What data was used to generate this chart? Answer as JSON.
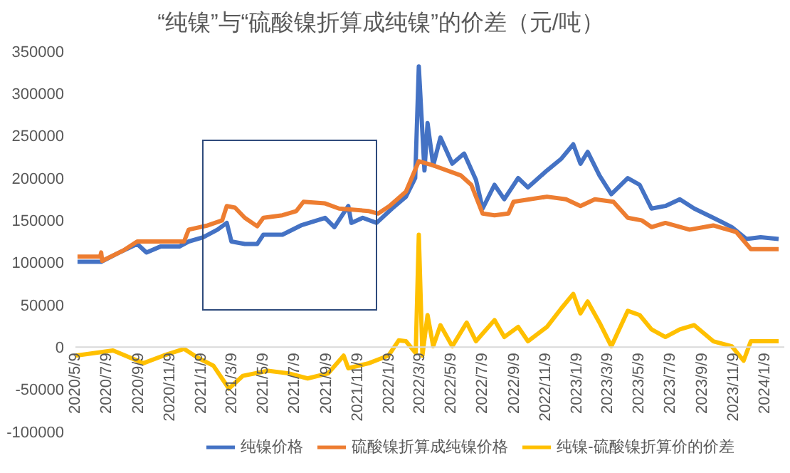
{
  "chart_data": {
    "type": "line",
    "title": "“纯镍”与“硫酸镍折算成纯镍”的价差（元/吨）",
    "legend": "bottom",
    "grid": false,
    "marker": "none",
    "line_style": "solid",
    "xlim": [
      "2020-05-09",
      "2024-02-15"
    ],
    "xticks": [
      {
        "value": "2020-05-09",
        "label": "2020/5/9"
      },
      {
        "value": "2020-07-09",
        "label": "2020/7/9"
      },
      {
        "value": "2020-09-09",
        "label": "2020/9/9"
      },
      {
        "value": "2020-11-09",
        "label": "2020/11/9"
      },
      {
        "value": "2021-01-09",
        "label": "2021/1/9"
      },
      {
        "value": "2021-03-09",
        "label": "2021/3/9"
      },
      {
        "value": "2021-05-09",
        "label": "2021/5/9"
      },
      {
        "value": "2021-07-09",
        "label": "2021/7/9"
      },
      {
        "value": "2021-09-09",
        "label": "2021/9/9"
      },
      {
        "value": "2021-11-09",
        "label": "2021/11/9"
      },
      {
        "value": "2022-01-09",
        "label": "2022/1/9"
      },
      {
        "value": "2022-03-09",
        "label": "2022/3/9"
      },
      {
        "value": "2022-05-09",
        "label": "2022/5/9"
      },
      {
        "value": "2022-07-09",
        "label": "2022/7/9"
      },
      {
        "value": "2022-09-09",
        "label": "2022/9/9"
      },
      {
        "value": "2022-11-09",
        "label": "2022/11/9"
      },
      {
        "value": "2023-01-09",
        "label": "2023/1/9"
      },
      {
        "value": "2023-03-09",
        "label": "2023/3/9"
      },
      {
        "value": "2023-05-09",
        "label": "2023/5/9"
      },
      {
        "value": "2023-07-09",
        "label": "2023/7/9"
      },
      {
        "value": "2023-09-09",
        "label": "2023/9/9"
      },
      {
        "value": "2023-11-09",
        "label": "2023/11/9"
      },
      {
        "value": "2024-01-09",
        "label": "2024/1/9"
      }
    ],
    "ylim": [
      -100000,
      350000
    ],
    "yticks": [
      -100000,
      -50000,
      0,
      50000,
      100000,
      150000,
      200000,
      250000,
      300000,
      350000
    ],
    "series": [
      {
        "name": "纯镍价格",
        "color": "#4472c4",
        "x": [
          "2020-05-13",
          "2020-06-28",
          "2020-07-30",
          "2020-09-06",
          "2020-09-24",
          "2020-10-21",
          "2020-11-27",
          "2020-12-15",
          "2021-01-12",
          "2021-02-09",
          "2021-02-27",
          "2021-03-08",
          "2021-04-03",
          "2021-04-27",
          "2021-05-09",
          "2021-06-15",
          "2021-07-21",
          "2021-09-06",
          "2021-09-24",
          "2021-10-21",
          "2021-10-27",
          "2021-11-18",
          "2021-12-15",
          "2022-01-14",
          "2022-02-10",
          "2022-02-28",
          "2022-03-07",
          "2022-03-18",
          "2022-03-24",
          "2022-04-04",
          "2022-04-18",
          "2022-05-11",
          "2022-06-03",
          "2022-06-26",
          "2022-07-09",
          "2022-08-01",
          "2022-08-20",
          "2022-09-16",
          "2022-10-05",
          "2022-11-11",
          "2022-12-09",
          "2023-01-01",
          "2023-01-15",
          "2023-01-29",
          "2023-02-21",
          "2023-03-16",
          "2023-04-17",
          "2023-05-10",
          "2023-06-02",
          "2023-06-29",
          "2023-07-27",
          "2023-08-24",
          "2023-09-30",
          "2023-11-05",
          "2023-12-03",
          "2023-12-31",
          "2024-02-04"
        ],
        "values": [
          101000,
          101000,
          111000,
          122000,
          112000,
          119000,
          119000,
          125000,
          130000,
          139000,
          147000,
          125000,
          122000,
          122000,
          133000,
          133000,
          144000,
          153000,
          142000,
          167000,
          147000,
          153000,
          147000,
          164000,
          178000,
          200000,
          332000,
          209000,
          265000,
          215000,
          248000,
          217000,
          229000,
          198000,
          164000,
          192000,
          175000,
          200000,
          189000,
          209000,
          223000,
          240000,
          217000,
          231000,
          203000,
          181000,
          200000,
          192000,
          164000,
          167000,
          175000,
          164000,
          153000,
          142000,
          128000,
          130000,
          128000
        ]
      },
      {
        "name": "硫酸镍折算成纯镍价格",
        "color": "#ed7d31",
        "x": [
          "2020-05-13",
          "2020-06-26",
          "2020-06-28",
          "2020-06-30",
          "2020-08-12",
          "2020-09-06",
          "2020-12-06",
          "2020-12-15",
          "2021-01-21",
          "2021-02-18",
          "2021-02-27",
          "2021-03-15",
          "2021-04-03",
          "2021-04-27",
          "2021-05-09",
          "2021-06-15",
          "2021-07-12",
          "2021-07-26",
          "2021-09-06",
          "2021-10-03",
          "2021-11-30",
          "2021-12-18",
          "2022-01-09",
          "2022-02-10",
          "2022-03-07",
          "2022-04-04",
          "2022-05-28",
          "2022-06-17",
          "2022-07-09",
          "2022-08-01",
          "2022-08-28",
          "2022-09-07",
          "2022-11-11",
          "2022-12-18",
          "2023-01-15",
          "2023-02-12",
          "2023-03-20",
          "2023-04-17",
          "2023-05-14",
          "2023-06-02",
          "2023-06-29",
          "2023-08-15",
          "2023-09-30",
          "2023-11-14",
          "2023-12-12",
          "2024-02-04"
        ],
        "values": [
          107000,
          107000,
          112000,
          102000,
          115000,
          125000,
          125000,
          139000,
          144000,
          150000,
          167000,
          165000,
          153000,
          143000,
          153000,
          156000,
          161000,
          172000,
          170000,
          164000,
          161000,
          158000,
          167000,
          184000,
          220000,
          215000,
          203000,
          192000,
          158000,
          156000,
          158000,
          172000,
          178000,
          175000,
          167000,
          175000,
          172000,
          153000,
          150000,
          142000,
          147000,
          139000,
          144000,
          136000,
          116000,
          116000
        ]
      },
      {
        "name": "纯镍-硫酸镍折算价的价差",
        "color": "#ffc000",
        "x": [
          "2020-05-09",
          "2020-07-21",
          "2020-09-18",
          "2020-10-27",
          "2020-12-06",
          "2021-01-03",
          "2021-02-01",
          "2021-03-03",
          "2021-03-30",
          "2021-05-18",
          "2021-06-27",
          "2021-08-03",
          "2021-09-12",
          "2021-10-12",
          "2021-10-21",
          "2021-11-30",
          "2022-01-07",
          "2022-01-27",
          "2022-02-10",
          "2022-03-01",
          "2022-03-07",
          "2022-03-14",
          "2022-03-24",
          "2022-04-04",
          "2022-04-18",
          "2022-05-11",
          "2022-06-08",
          "2022-06-26",
          "2022-08-01",
          "2022-08-20",
          "2022-09-16",
          "2022-10-05",
          "2022-11-11",
          "2022-12-09",
          "2023-01-01",
          "2023-01-15",
          "2023-01-29",
          "2023-02-21",
          "2023-03-16",
          "2023-04-17",
          "2023-05-10",
          "2023-06-02",
          "2023-06-29",
          "2023-07-27",
          "2023-08-24",
          "2023-09-30",
          "2023-11-05",
          "2023-11-28",
          "2023-12-12",
          "2024-02-04"
        ],
        "values": [
          -10000,
          -4000,
          -19000,
          -10000,
          -2000,
          -13000,
          -22000,
          -49000,
          -34000,
          -28000,
          -31000,
          -37000,
          -31000,
          -10000,
          -25000,
          -19000,
          -10000,
          8000,
          7000,
          -7000,
          133000,
          -10000,
          38000,
          1000,
          26000,
          1000,
          29000,
          7000,
          32000,
          12000,
          24000,
          7000,
          24000,
          46000,
          63000,
          40000,
          54000,
          29000,
          1000,
          43000,
          38000,
          21000,
          12000,
          21000,
          26000,
          7000,
          1000,
          -16000,
          7000,
          7000
        ]
      }
    ]
  }
}
